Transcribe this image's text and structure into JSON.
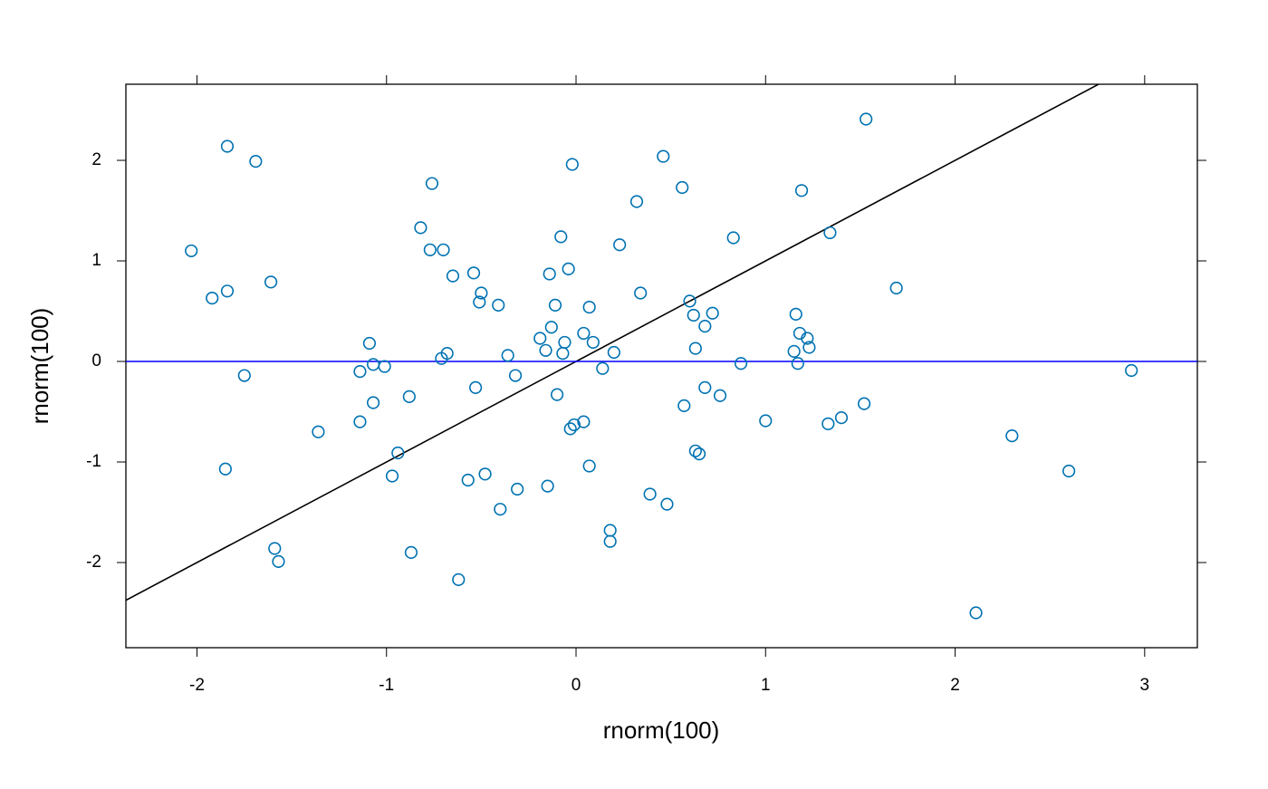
{
  "chart_data": {
    "type": "scatter",
    "xlabel": "rnorm(100)",
    "ylabel": "rnorm(100)",
    "xlim": [
      -2.375,
      3.278
    ],
    "ylim": [
      -2.847,
      2.757
    ],
    "xticks": [
      -2,
      -1,
      0,
      1,
      2,
      3
    ],
    "yticks": [
      -2,
      -1,
      0,
      1,
      2
    ],
    "abline": {
      "intercept": 0,
      "slope": 1,
      "color": "#000000"
    },
    "hline": {
      "y": 0,
      "color": "#0000ff"
    },
    "series": [
      {
        "color": "#0072b2",
        "x": [
          -2.03,
          -1.84,
          -1.69,
          -1.92,
          -1.84,
          -1.61,
          -1.75,
          -1.85,
          -1.59,
          -1.57,
          -1.36,
          -1.09,
          -1.14,
          -1.07,
          -1.01,
          -1.07,
          -1.14,
          -0.88,
          -0.94,
          -0.97,
          -0.87,
          -0.82,
          -0.76,
          -0.77,
          -0.7,
          -0.65,
          -0.71,
          -0.68,
          -0.54,
          -0.5,
          -0.51,
          -0.41,
          -0.53,
          -0.36,
          -0.32,
          -0.57,
          -0.48,
          -0.31,
          -0.4,
          -0.62,
          -0.02,
          -0.08,
          -0.04,
          -0.14,
          -0.11,
          -0.13,
          -0.19,
          -0.16,
          -0.06,
          -0.07,
          -0.1,
          -0.15,
          -0.01,
          -0.03,
          0.04,
          0.04,
          0.07,
          0.09,
          0.2,
          0.14,
          0.07,
          0.18,
          0.18,
          0.23,
          0.32,
          0.34,
          0.46,
          0.56,
          0.39,
          0.48,
          0.57,
          0.6,
          0.62,
          0.68,
          0.72,
          0.63,
          0.68,
          0.76,
          0.63,
          0.65,
          0.83,
          0.87,
          1.0,
          1.19,
          1.34,
          1.16,
          1.18,
          1.22,
          1.23,
          1.15,
          1.17,
          1.33,
          1.4,
          1.52,
          1.53,
          1.69,
          2.11,
          2.3,
          2.6,
          2.93
        ],
        "values": [
          1.1,
          2.14,
          1.99,
          0.63,
          0.7,
          0.79,
          -0.14,
          -1.07,
          -1.86,
          -1.99,
          -0.7,
          0.18,
          -0.1,
          -0.03,
          -0.05,
          -0.41,
          -0.6,
          -0.35,
          -0.91,
          -1.14,
          -1.9,
          1.33,
          1.77,
          1.11,
          1.11,
          0.85,
          0.03,
          0.08,
          0.88,
          0.68,
          0.59,
          0.56,
          -0.26,
          0.06,
          -0.14,
          -1.18,
          -1.12,
          -1.27,
          -1.47,
          -2.17,
          1.96,
          1.24,
          0.92,
          0.87,
          0.56,
          0.34,
          0.23,
          0.11,
          0.19,
          0.08,
          -0.33,
          -1.24,
          -0.63,
          -0.67,
          -0.6,
          0.28,
          0.54,
          0.19,
          0.09,
          -0.07,
          -1.04,
          -1.68,
          -1.79,
          1.16,
          1.59,
          0.68,
          2.04,
          1.73,
          -1.32,
          -1.42,
          -0.44,
          0.6,
          0.46,
          0.35,
          0.48,
          0.13,
          -0.26,
          -0.34,
          -0.89,
          -0.92,
          1.23,
          -0.02,
          -0.59,
          1.7,
          1.28,
          0.47,
          0.28,
          0.23,
          0.14,
          0.1,
          -0.02,
          -0.62,
          -0.56,
          -0.42,
          2.41,
          0.73,
          -2.5,
          -0.74,
          -1.09,
          -0.09
        ]
      }
    ]
  }
}
